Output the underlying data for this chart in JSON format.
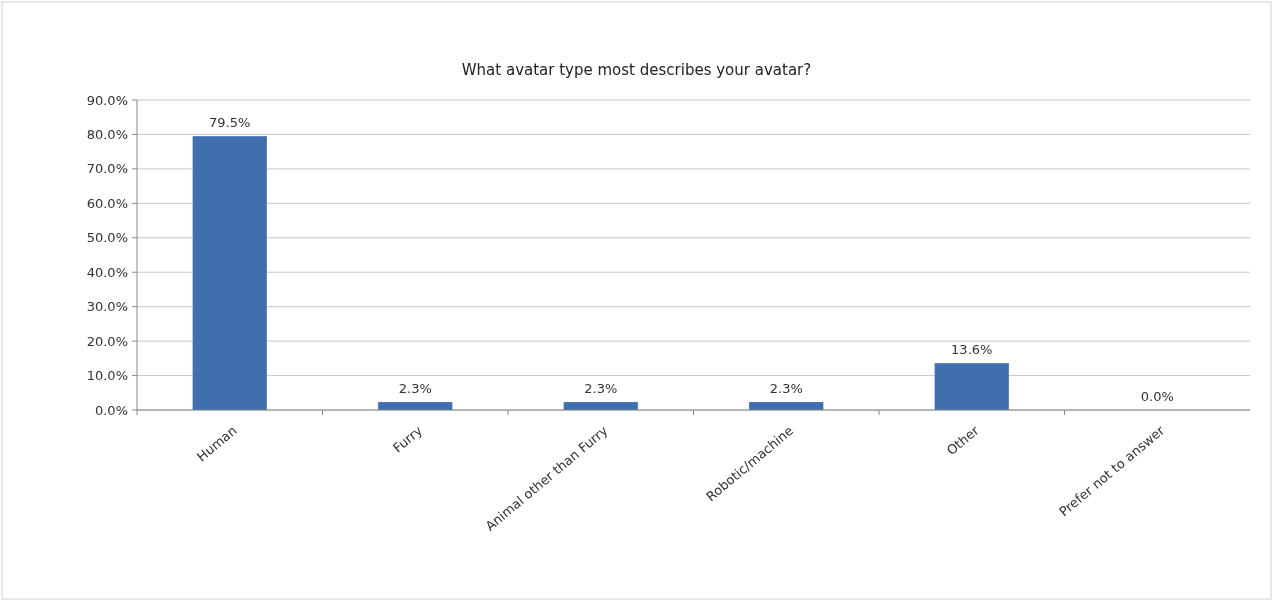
{
  "chart_data": {
    "type": "bar",
    "title": "What avatar type most describes your avatar?",
    "categories": [
      "Human",
      "Furry",
      "Animal other than Furry",
      "Robotic/machine",
      "Other",
      "Prefer not to answer"
    ],
    "values": [
      79.5,
      2.3,
      2.3,
      2.3,
      13.6,
      0.0
    ],
    "value_labels": [
      "79.5%",
      "2.3%",
      "2.3%",
      "2.3%",
      "13.6%",
      "0.0%"
    ],
    "color": "#3f6fae",
    "ylim": [
      0,
      90
    ],
    "yticks": [
      {
        "value": 0,
        "label": "0.0%"
      },
      {
        "value": 10,
        "label": "10.0%"
      },
      {
        "value": 20,
        "label": "20.0%"
      },
      {
        "value": 30,
        "label": "30.0%"
      },
      {
        "value": 40,
        "label": "40.0%"
      },
      {
        "value": 50,
        "label": "50.0%"
      },
      {
        "value": 60,
        "label": "60.0%"
      },
      {
        "value": 70,
        "label": "70.0%"
      },
      {
        "value": 80,
        "label": "80.0%"
      },
      {
        "value": 90,
        "label": "90.0%"
      }
    ],
    "grid": "y"
  }
}
